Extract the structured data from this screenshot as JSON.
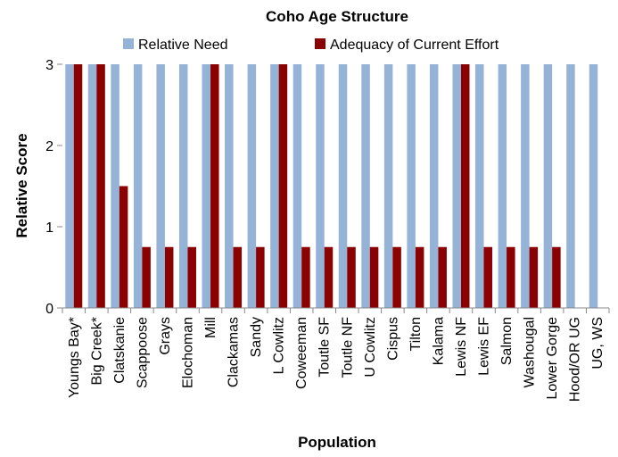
{
  "chart_data": {
    "type": "bar",
    "title": "Coho Age Structure",
    "xlabel": "Population",
    "ylabel": "Relative Score",
    "ylim": [
      0,
      3
    ],
    "yticks": [
      0,
      1,
      2,
      3
    ],
    "legend_position": "top",
    "categories": [
      "Youngs Bay*",
      "Big Creek*",
      "Clatskanie",
      "Scappoose",
      "Grays",
      "Elochoman",
      "Mill",
      "Clackamas",
      "Sandy",
      "L Cowlitz",
      "Coweeman",
      "Toutle SF",
      "Toutle NF",
      "U Cowlitz",
      "Cispus",
      "Tilton",
      "Kalama",
      "Lewis NF",
      "Lewis EF",
      "Salmon",
      "Washougal",
      "Lower Gorge",
      "Hood/OR UG",
      "UG, WS"
    ],
    "series": [
      {
        "name": "Relative Need",
        "color": "#95b3d7",
        "values": [
          3,
          3,
          3,
          3,
          3,
          3,
          3,
          3,
          3,
          3,
          3,
          3,
          3,
          3,
          3,
          3,
          3,
          3,
          3,
          3,
          3,
          3,
          3,
          3
        ]
      },
      {
        "name": "Adequacy of Current Effort",
        "color": "#8b0000",
        "values": [
          3,
          3,
          1.5,
          0.75,
          0.75,
          0.75,
          3,
          0.75,
          0.75,
          3,
          0.75,
          0.75,
          0.75,
          0.75,
          0.75,
          0.75,
          0.75,
          3,
          0.75,
          0.75,
          0.75,
          0.75,
          0,
          0
        ]
      }
    ]
  }
}
